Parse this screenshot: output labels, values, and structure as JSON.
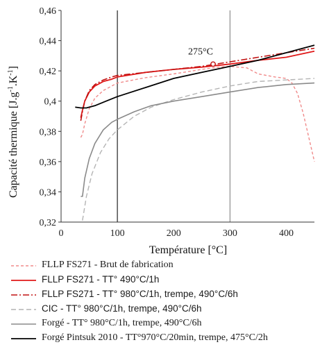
{
  "chart_data": {
    "type": "line",
    "ylabel": "Capacité thermique [J.g-1.K-1]",
    "ylabel_parts": {
      "main": "Capacité thermique [J.g",
      "sup1": "-1",
      "mid": ".K",
      "sup2": "-1",
      "end": "]"
    },
    "xlabel": "Température [°C]",
    "xlim": [
      0,
      450
    ],
    "ylim": [
      0.32,
      0.46
    ],
    "xticks": [
      "0",
      "100",
      "200",
      "300",
      "400"
    ],
    "xtick_values": [
      0,
      100,
      200,
      300,
      400
    ],
    "yticks": [
      "0,32",
      "0,34",
      "0,36",
      "0,38",
      "0,4",
      "0,42",
      "0,44",
      "0,46"
    ],
    "ytick_values": [
      0.32,
      0.34,
      0.36,
      0.38,
      0.4,
      0.42,
      0.44,
      0.46
    ],
    "grid": false,
    "vertical_lines": [
      100,
      300
    ],
    "legend_position": "bottom",
    "annotation": {
      "text": "275°C",
      "x": 270,
      "y": 0.4245
    },
    "series": [
      {
        "name": "FLLP FS271 - Brut de fabrication",
        "color": "#f08a8a",
        "dash": "4,3",
        "width": 1.4,
        "x": [
          35,
          38,
          42,
          50,
          60,
          75,
          90,
          100,
          150,
          200,
          250,
          280,
          300,
          330,
          350,
          380,
          400,
          410,
          420,
          430,
          440,
          450
        ],
        "y": [
          0.376,
          0.378,
          0.385,
          0.395,
          0.402,
          0.407,
          0.41,
          0.412,
          0.4155,
          0.418,
          0.421,
          0.4225,
          0.423,
          0.422,
          0.418,
          0.416,
          0.415,
          0.412,
          0.405,
          0.392,
          0.376,
          0.36
        ]
      },
      {
        "name": "FLLP FS271 - TT° 490°C/1h",
        "color": "#e01818",
        "dash": "",
        "width": 1.8,
        "x": [
          35,
          38,
          42,
          50,
          60,
          75,
          90,
          100,
          150,
          200,
          250,
          300,
          350,
          400,
          450
        ],
        "y": [
          0.389,
          0.394,
          0.4,
          0.406,
          0.41,
          0.413,
          0.4145,
          0.416,
          0.419,
          0.421,
          0.4225,
          0.4245,
          0.427,
          0.429,
          0.433
        ]
      },
      {
        "name": "FLLP FS271 - TT° 980°C/1h, trempe, 490°C/6h",
        "color": "#c01010",
        "dash": "9,3,2,3",
        "width": 1.6,
        "x": [
          35,
          38,
          42,
          50,
          60,
          75,
          90,
          100,
          150,
          200,
          250,
          300,
          350,
          400,
          450
        ],
        "y": [
          0.387,
          0.393,
          0.4,
          0.407,
          0.411,
          0.414,
          0.416,
          0.417,
          0.419,
          0.421,
          0.423,
          0.426,
          0.429,
          0.432,
          0.435
        ]
      },
      {
        "name": "CIC - TT° 980°C/1h, trempe, 490°C/6h",
        "color": "#b4b4b4",
        "dash": "7,4",
        "width": 1.4,
        "x": [
          38,
          45,
          55,
          70,
          85,
          100,
          130,
          160,
          200,
          250,
          300,
          350,
          400,
          450
        ],
        "y": [
          0.321,
          0.337,
          0.352,
          0.366,
          0.375,
          0.381,
          0.39,
          0.396,
          0.401,
          0.406,
          0.41,
          0.413,
          0.414,
          0.415
        ]
      },
      {
        "name": "Forgé - TT° 980°C/1h, trempe, 490°C/6h",
        "color": "#8a8a8a",
        "dash": "",
        "width": 1.6,
        "x": [
          35,
          38,
          42,
          50,
          60,
          75,
          90,
          100,
          130,
          160,
          200,
          250,
          300,
          350,
          400,
          450
        ],
        "y": [
          0.337,
          0.337,
          0.349,
          0.362,
          0.372,
          0.381,
          0.386,
          0.388,
          0.393,
          0.397,
          0.4,
          0.403,
          0.406,
          0.409,
          0.411,
          0.412
        ]
      },
      {
        "name": "Forgé Pintsuk 2010 - TT°970°C/20min, trempe, 475°C/2h",
        "color": "#000000",
        "dash": "",
        "width": 1.8,
        "x": [
          25,
          35,
          45,
          60,
          80,
          100,
          150,
          200,
          250,
          300,
          350,
          400,
          450
        ],
        "y": [
          0.396,
          0.3955,
          0.3955,
          0.397,
          0.4,
          0.403,
          0.409,
          0.415,
          0.419,
          0.423,
          0.427,
          0.432,
          0.437
        ]
      }
    ]
  }
}
